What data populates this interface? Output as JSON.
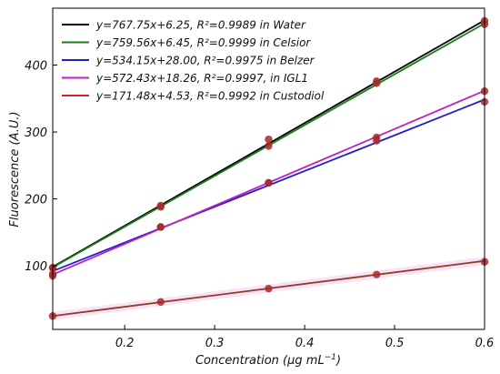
{
  "chart_data": {
    "type": "scatter",
    "title": "",
    "xlabel": "Concentration (μg mL",
    "xlabel_sup": "−1",
    "xlabel_close": ")",
    "ylabel": "Fluorescence (A.U.)",
    "xlim": [
      0.12,
      0.6
    ],
    "ylim": [
      5,
      485
    ],
    "xticks": [
      0.2,
      0.3,
      0.4,
      0.5,
      0.6
    ],
    "xtick_labels": [
      "0.2",
      "0.3",
      "0.4",
      "0.5",
      "0.6"
    ],
    "yticks": [
      100,
      200,
      300,
      400
    ],
    "ytick_labels": [
      "100",
      "200",
      "300",
      "400"
    ],
    "grid": false,
    "legend_position": "top-left",
    "x": [
      0.12,
      0.24,
      0.36,
      0.48,
      0.6
    ],
    "series": [
      {
        "name": "y=767.75x+6.25, R²=0.9989 in Water",
        "color": "#000000",
        "slope": 767.75,
        "intercept": 6.25,
        "values": [
          97,
          190,
          289,
          376,
          466
        ]
      },
      {
        "name": "y=759.56x+6.45, R²=0.9999 in Celsior",
        "color": "#1a7f1a",
        "slope": 759.56,
        "intercept": 6.45,
        "values": [
          97,
          188,
          279,
          373,
          461
        ]
      },
      {
        "name": "y=534.15x+28.00, R²=0.9975 in Belzer",
        "color": "#1f1fc8",
        "slope": 534.15,
        "intercept": 28.0,
        "values": [
          85,
          158,
          224,
          287,
          345
        ]
      },
      {
        "name": "y=572.43x+18.26, R²=0.9997, in IGL1",
        "color": "#c21fc2",
        "slope": 572.43,
        "intercept": 18.26,
        "values": [
          88,
          158,
          224,
          292,
          361
        ]
      },
      {
        "name": "y=171.48x+4.53, R²=0.9992 in Custodiol",
        "color": "#d42020",
        "slope": 171.48,
        "intercept": 4.53,
        "values": [
          25,
          46,
          66,
          87,
          106
        ]
      }
    ],
    "point_color": "#a52a2a"
  }
}
